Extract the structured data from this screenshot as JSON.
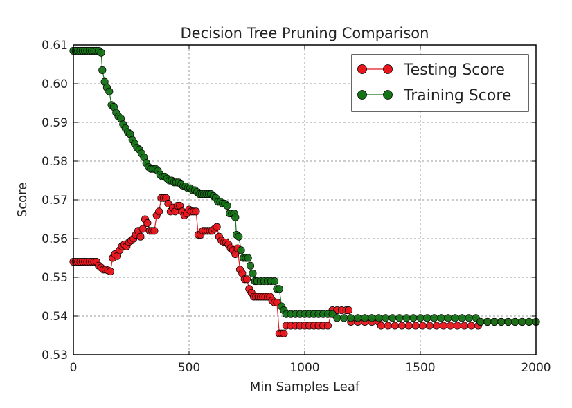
{
  "chart_data": {
    "type": "line",
    "title": "Decision Tree Pruning Comparison",
    "xlabel": "Min Samples Leaf",
    "ylabel": "Score",
    "xlim": [
      0,
      2000
    ],
    "ylim": [
      0.53,
      0.61
    ],
    "xticks": [
      0,
      500,
      1000,
      1500,
      2000
    ],
    "xtick_labels": [
      "0",
      "500",
      "1000",
      "1500",
      "2000"
    ],
    "yticks": [
      0.53,
      0.54,
      0.55,
      0.56,
      0.57,
      0.58,
      0.59,
      0.6,
      0.61
    ],
    "ytick_labels": [
      "0.53",
      "0.54",
      "0.55",
      "0.56",
      "0.57",
      "0.58",
      "0.59",
      "0.60",
      "0.61"
    ],
    "grid": true,
    "legend_position": "top-right",
    "series": [
      {
        "name": "Testing Score",
        "color": "#e8161d",
        "marker": "circle",
        "points": [
          [
            0,
            0.554
          ],
          [
            10,
            0.554
          ],
          [
            20,
            0.554
          ],
          [
            30,
            0.554
          ],
          [
            40,
            0.554
          ],
          [
            50,
            0.554
          ],
          [
            60,
            0.554
          ],
          [
            70,
            0.554
          ],
          [
            80,
            0.554
          ],
          [
            90,
            0.554
          ],
          [
            100,
            0.554
          ],
          [
            110,
            0.553
          ],
          [
            120,
            0.5525
          ],
          [
            130,
            0.552
          ],
          [
            140,
            0.552
          ],
          [
            150,
            0.5518
          ],
          [
            160,
            0.5515
          ],
          [
            170,
            0.555
          ],
          [
            180,
            0.556
          ],
          [
            190,
            0.5555
          ],
          [
            200,
            0.557
          ],
          [
            210,
            0.558
          ],
          [
            220,
            0.5585
          ],
          [
            230,
            0.558
          ],
          [
            240,
            0.559
          ],
          [
            250,
            0.5595
          ],
          [
            260,
            0.56
          ],
          [
            270,
            0.561
          ],
          [
            280,
            0.562
          ],
          [
            290,
            0.5605
          ],
          [
            300,
            0.5625
          ],
          [
            310,
            0.565
          ],
          [
            320,
            0.564
          ],
          [
            330,
            0.562
          ],
          [
            340,
            0.562
          ],
          [
            350,
            0.562
          ],
          [
            360,
            0.566
          ],
          [
            370,
            0.567
          ],
          [
            380,
            0.5705
          ],
          [
            390,
            0.5705
          ],
          [
            400,
            0.5705
          ],
          [
            410,
            0.569
          ],
          [
            420,
            0.567
          ],
          [
            430,
            0.568
          ],
          [
            440,
            0.567
          ],
          [
            450,
            0.5685
          ],
          [
            460,
            0.5685
          ],
          [
            470,
            0.567
          ],
          [
            480,
            0.566
          ],
          [
            490,
            0.5665
          ],
          [
            500,
            0.5675
          ],
          [
            510,
            0.567
          ],
          [
            520,
            0.567
          ],
          [
            530,
            0.567
          ],
          [
            540,
            0.561
          ],
          [
            550,
            0.561
          ],
          [
            560,
            0.562
          ],
          [
            570,
            0.562
          ],
          [
            580,
            0.562
          ],
          [
            590,
            0.562
          ],
          [
            600,
            0.562
          ],
          [
            610,
            0.5625
          ],
          [
            620,
            0.563
          ],
          [
            630,
            0.5605
          ],
          [
            640,
            0.5595
          ],
          [
            650,
            0.559
          ],
          [
            660,
            0.559
          ],
          [
            670,
            0.5585
          ],
          [
            680,
            0.5575
          ],
          [
            690,
            0.557
          ],
          [
            700,
            0.556
          ],
          [
            710,
            0.5575
          ],
          [
            720,
            0.552
          ],
          [
            730,
            0.551
          ],
          [
            740,
            0.5495
          ],
          [
            750,
            0.5495
          ],
          [
            760,
            0.547
          ],
          [
            770,
            0.546
          ],
          [
            780,
            0.545
          ],
          [
            790,
            0.545
          ],
          [
            800,
            0.545
          ],
          [
            810,
            0.545
          ],
          [
            820,
            0.545
          ],
          [
            830,
            0.545
          ],
          [
            840,
            0.545
          ],
          [
            850,
            0.545
          ],
          [
            860,
            0.544
          ],
          [
            870,
            0.5435
          ],
          [
            880,
            0.5435
          ],
          [
            890,
            0.5355
          ],
          [
            900,
            0.5355
          ],
          [
            910,
            0.5355
          ],
          [
            920,
            0.5375
          ],
          [
            940,
            0.5375
          ],
          [
            960,
            0.5375
          ],
          [
            980,
            0.5375
          ],
          [
            1000,
            0.5375
          ],
          [
            1020,
            0.5375
          ],
          [
            1040,
            0.5375
          ],
          [
            1060,
            0.5375
          ],
          [
            1080,
            0.5375
          ],
          [
            1100,
            0.5375
          ],
          [
            1120,
            0.5415
          ],
          [
            1140,
            0.5415
          ],
          [
            1160,
            0.5415
          ],
          [
            1180,
            0.5415
          ],
          [
            1190,
            0.5415
          ],
          [
            1200,
            0.5385
          ],
          [
            1230,
            0.5385
          ],
          [
            1260,
            0.5385
          ],
          [
            1290,
            0.5385
          ],
          [
            1320,
            0.5385
          ],
          [
            1330,
            0.5375
          ],
          [
            1360,
            0.5375
          ],
          [
            1390,
            0.5375
          ],
          [
            1420,
            0.5375
          ],
          [
            1450,
            0.5375
          ],
          [
            1480,
            0.5375
          ],
          [
            1510,
            0.5375
          ],
          [
            1540,
            0.5375
          ],
          [
            1570,
            0.5375
          ],
          [
            1600,
            0.5375
          ],
          [
            1630,
            0.5375
          ],
          [
            1660,
            0.5375
          ],
          [
            1690,
            0.5375
          ],
          [
            1720,
            0.5375
          ],
          [
            1750,
            0.5375
          ],
          [
            1760,
            0.5385
          ],
          [
            1790,
            0.5385
          ],
          [
            1820,
            0.5385
          ],
          [
            1850,
            0.5385
          ],
          [
            1880,
            0.5385
          ],
          [
            1910,
            0.5385
          ],
          [
            1940,
            0.5385
          ],
          [
            1970,
            0.5385
          ],
          [
            2000,
            0.5385
          ]
        ]
      },
      {
        "name": "Training Score",
        "color": "#157317",
        "marker": "circle",
        "points": [
          [
            0,
            0.6085
          ],
          [
            10,
            0.6085
          ],
          [
            20,
            0.6085
          ],
          [
            30,
            0.6085
          ],
          [
            40,
            0.6085
          ],
          [
            50,
            0.6085
          ],
          [
            60,
            0.6085
          ],
          [
            70,
            0.6085
          ],
          [
            80,
            0.6085
          ],
          [
            90,
            0.6085
          ],
          [
            100,
            0.6085
          ],
          [
            110,
            0.6085
          ],
          [
            120,
            0.608
          ],
          [
            125,
            0.6035
          ],
          [
            135,
            0.6005
          ],
          [
            145,
            0.599
          ],
          [
            155,
            0.598
          ],
          [
            165,
            0.5945
          ],
          [
            175,
            0.594
          ],
          [
            185,
            0.5925
          ],
          [
            195,
            0.5915
          ],
          [
            205,
            0.591
          ],
          [
            215,
            0.5895
          ],
          [
            225,
            0.5885
          ],
          [
            235,
            0.5875
          ],
          [
            245,
            0.587
          ],
          [
            255,
            0.5855
          ],
          [
            265,
            0.5845
          ],
          [
            275,
            0.5835
          ],
          [
            285,
            0.583
          ],
          [
            295,
            0.582
          ],
          [
            305,
            0.581
          ],
          [
            315,
            0.5795
          ],
          [
            325,
            0.5785
          ],
          [
            335,
            0.578
          ],
          [
            345,
            0.578
          ],
          [
            355,
            0.578
          ],
          [
            365,
            0.5775
          ],
          [
            375,
            0.5765
          ],
          [
            385,
            0.576
          ],
          [
            395,
            0.576
          ],
          [
            405,
            0.5755
          ],
          [
            415,
            0.575
          ],
          [
            425,
            0.575
          ],
          [
            435,
            0.5745
          ],
          [
            445,
            0.5745
          ],
          [
            455,
            0.5745
          ],
          [
            465,
            0.574
          ],
          [
            475,
            0.5735
          ],
          [
            485,
            0.5735
          ],
          [
            495,
            0.573
          ],
          [
            505,
            0.573
          ],
          [
            515,
            0.5725
          ],
          [
            525,
            0.5725
          ],
          [
            535,
            0.572
          ],
          [
            545,
            0.5715
          ],
          [
            555,
            0.5715
          ],
          [
            565,
            0.5715
          ],
          [
            575,
            0.5715
          ],
          [
            585,
            0.5715
          ],
          [
            595,
            0.5715
          ],
          [
            605,
            0.571
          ],
          [
            615,
            0.5705
          ],
          [
            625,
            0.5695
          ],
          [
            635,
            0.5695
          ],
          [
            645,
            0.569
          ],
          [
            655,
            0.569
          ],
          [
            665,
            0.5685
          ],
          [
            675,
            0.5665
          ],
          [
            685,
            0.5665
          ],
          [
            695,
            0.5665
          ],
          [
            700,
            0.5655
          ],
          [
            705,
            0.561
          ],
          [
            715,
            0.5605
          ],
          [
            725,
            0.557
          ],
          [
            735,
            0.555
          ],
          [
            745,
            0.555
          ],
          [
            755,
            0.555
          ],
          [
            765,
            0.553
          ],
          [
            775,
            0.551
          ],
          [
            785,
            0.549
          ],
          [
            795,
            0.549
          ],
          [
            810,
            0.549
          ],
          [
            825,
            0.549
          ],
          [
            840,
            0.549
          ],
          [
            855,
            0.549
          ],
          [
            870,
            0.549
          ],
          [
            880,
            0.547
          ],
          [
            890,
            0.547
          ],
          [
            900,
            0.5425
          ],
          [
            910,
            0.5415
          ],
          [
            920,
            0.5405
          ],
          [
            940,
            0.5405
          ],
          [
            960,
            0.5405
          ],
          [
            980,
            0.5405
          ],
          [
            1000,
            0.5405
          ],
          [
            1020,
            0.5405
          ],
          [
            1040,
            0.5405
          ],
          [
            1060,
            0.5405
          ],
          [
            1080,
            0.5405
          ],
          [
            1100,
            0.5405
          ],
          [
            1120,
            0.5405
          ],
          [
            1140,
            0.5395
          ],
          [
            1170,
            0.5395
          ],
          [
            1200,
            0.5395
          ],
          [
            1230,
            0.5395
          ],
          [
            1260,
            0.5395
          ],
          [
            1290,
            0.5395
          ],
          [
            1320,
            0.5395
          ],
          [
            1350,
            0.5395
          ],
          [
            1380,
            0.5395
          ],
          [
            1410,
            0.5395
          ],
          [
            1440,
            0.5395
          ],
          [
            1470,
            0.5395
          ],
          [
            1500,
            0.5395
          ],
          [
            1530,
            0.5395
          ],
          [
            1560,
            0.5395
          ],
          [
            1590,
            0.5395
          ],
          [
            1620,
            0.5395
          ],
          [
            1650,
            0.5395
          ],
          [
            1680,
            0.5395
          ],
          [
            1710,
            0.5395
          ],
          [
            1740,
            0.5395
          ],
          [
            1760,
            0.5385
          ],
          [
            1790,
            0.5385
          ],
          [
            1820,
            0.5385
          ],
          [
            1850,
            0.5385
          ],
          [
            1880,
            0.5385
          ],
          [
            1910,
            0.5385
          ],
          [
            1940,
            0.5385
          ],
          [
            1970,
            0.5385
          ],
          [
            2000,
            0.5385
          ]
        ]
      }
    ]
  }
}
